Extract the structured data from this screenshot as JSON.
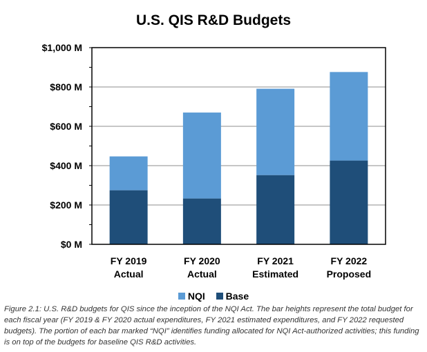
{
  "chart_data": {
    "type": "bar",
    "stacked": true,
    "title": "U.S. QIS R&D Budgets",
    "categories": [
      [
        "FY 2019",
        "Actual"
      ],
      [
        "FY 2020",
        "Actual"
      ],
      [
        "FY 2021",
        "Estimated"
      ],
      [
        "FY 2022",
        "Proposed"
      ]
    ],
    "series": [
      {
        "name": "Base",
        "color": "#1f4e79",
        "values": [
          275,
          233,
          352,
          426
        ]
      },
      {
        "name": "NQI",
        "color": "#5b9bd5",
        "values": [
          172,
          437,
          439,
          450
        ]
      }
    ],
    "ylim": [
      0,
      1000
    ],
    "yticks": [
      0,
      200,
      400,
      600,
      800,
      1000
    ],
    "ytick_labels": [
      "$0 M",
      "$200 M",
      "$400 M",
      "$600 M",
      "$800 M",
      "$1,000 M"
    ],
    "grid": true,
    "legend": {
      "placement": "bottom",
      "entries": [
        "NQI",
        "Base"
      ]
    },
    "xlabel": "",
    "ylabel": ""
  },
  "caption": "Figure 2.1: U.S. R&D budgets for QIS since the inception of the NQI Act. The bar heights represent the total budget for each fiscal year (FY 2019 & FY 2020 actual expenditures, FY 2021 estimated expenditures, and FY 2022 requested budgets). The portion of each bar marked “NQI” identifies funding allocated for NQI Act-authorized activities; this funding is on top of the budgets for baseline QIS R&D activities."
}
